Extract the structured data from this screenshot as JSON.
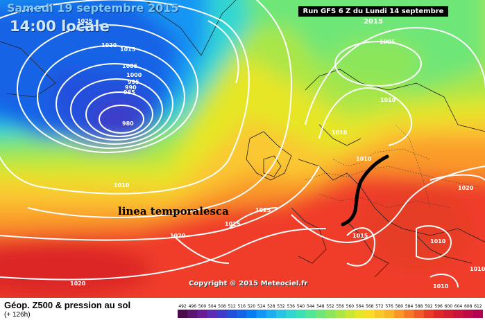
{
  "header": {
    "date": "Samedi 19 septembre 2015",
    "time": "14:00 locale",
    "run": "Run GFS 6 Z du Lundi 14 septembre 2015"
  },
  "annotation": {
    "label": "linea temporalesca",
    "line_color": "#000000"
  },
  "isobars": [
    {
      "label": "1025"
    },
    {
      "label": "1020"
    },
    {
      "label": "1015"
    },
    {
      "label": "1005"
    },
    {
      "label": "1000"
    },
    {
      "label": "995"
    },
    {
      "label": "990"
    },
    {
      "label": "985"
    },
    {
      "label": "980"
    },
    {
      "label": "1010"
    },
    {
      "label": "1005"
    },
    {
      "label": "1010"
    },
    {
      "label": "1010"
    },
    {
      "label": "1010"
    },
    {
      "label": "1025"
    },
    {
      "label": "1025"
    },
    {
      "label": "1020"
    },
    {
      "label": "1015"
    },
    {
      "label": "1020"
    },
    {
      "label": "1020"
    },
    {
      "label": "1010"
    },
    {
      "label": "1010"
    },
    {
      "label": "1010"
    }
  ],
  "copyright": "Copyright © 2015 Meteociel.fr",
  "footer": {
    "field_title": "Géop. Z500 & pression au sol",
    "forecast_hour": "(+ 126h)"
  },
  "legend": {
    "values": [
      "492",
      "496",
      "500",
      "504",
      "508",
      "512",
      "516",
      "520",
      "524",
      "528",
      "532",
      "536",
      "540",
      "544",
      "548",
      "552",
      "556",
      "560",
      "564",
      "568",
      "572",
      "576",
      "580",
      "584",
      "588",
      "592",
      "596",
      "600",
      "604",
      "608",
      "612"
    ],
    "colors": [
      "#4b0b4b",
      "#5a1470",
      "#6a1c96",
      "#5c2cb4",
      "#3c3cc8",
      "#2050dc",
      "#1464e6",
      "#0a7cf0",
      "#1496f4",
      "#1eaef0",
      "#28c4e6",
      "#30d6d2",
      "#3ce0b4",
      "#50e696",
      "#6ee678",
      "#8ce65a",
      "#aae646",
      "#c8e632",
      "#e6e628",
      "#fadc28",
      "#fac828",
      "#fab428",
      "#fa9628",
      "#f57828",
      "#f05a28",
      "#e63c28",
      "#dc2828",
      "#d21e32",
      "#c8143c",
      "#be0a46",
      "#b40050"
    ]
  }
}
